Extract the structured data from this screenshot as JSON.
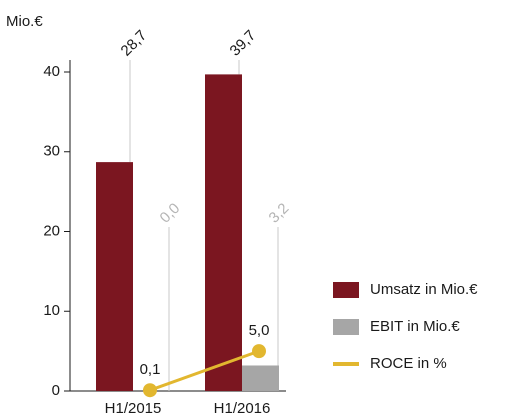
{
  "chart_data": {
    "type": "bar",
    "y_label": "Mio.€",
    "categories": [
      "H1/2015",
      "H1/2016"
    ],
    "series": [
      {
        "name": "Umsatz in Mio.€",
        "color": "#7b1620",
        "type": "bar",
        "values": [
          28.7,
          39.7
        ],
        "value_labels": [
          "28,7",
          "39,7"
        ]
      },
      {
        "name": "EBIT in Mio.€",
        "color": "#a6a6a6",
        "type": "bar",
        "values": [
          0.0,
          3.2
        ],
        "value_labels": [
          "0,0",
          "3,2"
        ]
      },
      {
        "name": "ROCE in %",
        "color": "#e2b72f",
        "type": "line",
        "values": [
          0.1,
          5.0
        ],
        "value_labels": [
          "0,1",
          "5,0"
        ]
      }
    ],
    "ylim": [
      0,
      40
    ],
    "yticks": [
      0,
      10,
      20,
      30,
      40
    ],
    "legend": "right"
  }
}
